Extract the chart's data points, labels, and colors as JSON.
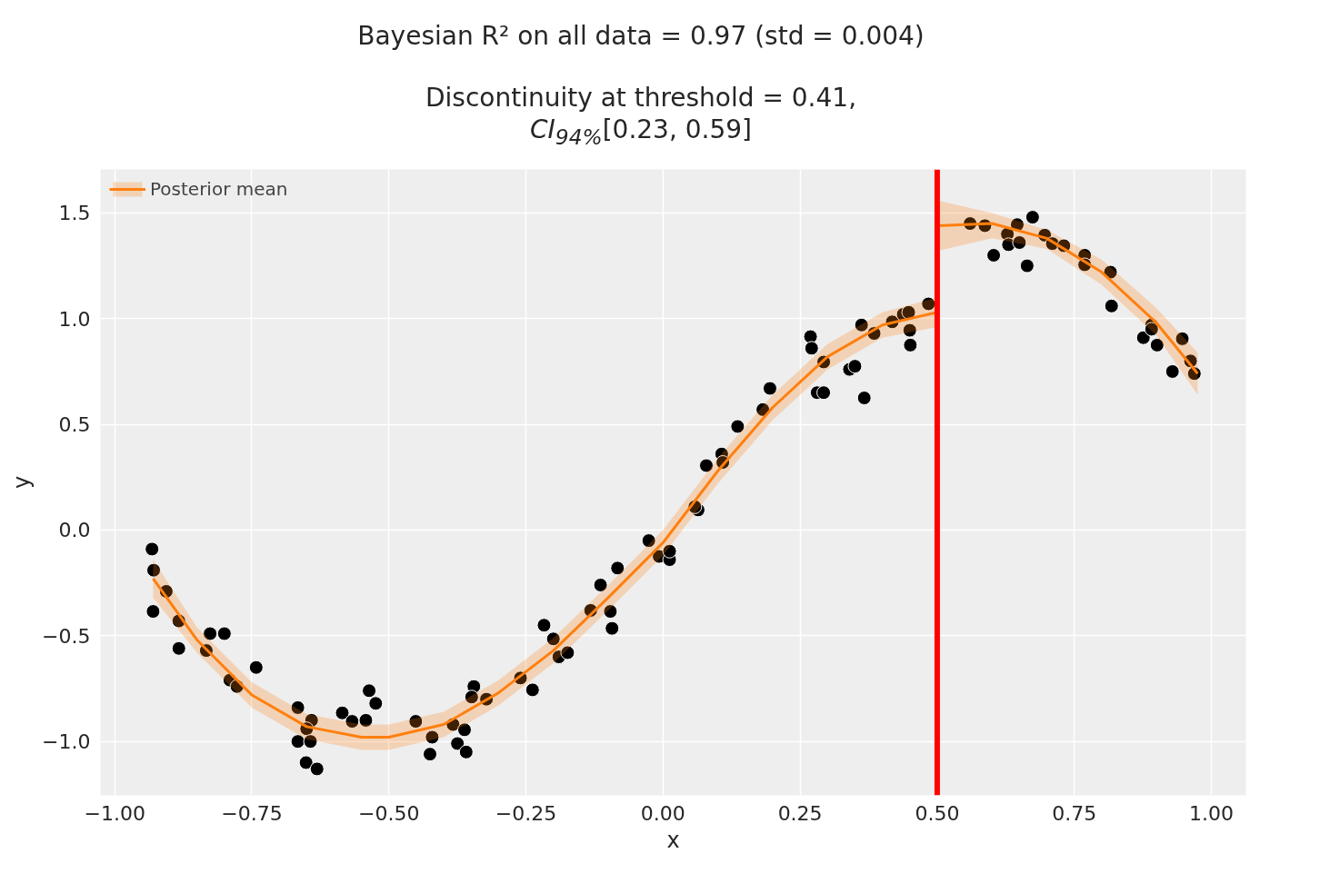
{
  "chart_data": {
    "type": "scatter",
    "title": "Bayesian R² on all data = 0.97 (std = 0.004)",
    "subtitle": "Discontinuity at threshold = 0.41,\nCI$_{94%}$[0.23, 0.59]",
    "xlabel": "x",
    "ylabel": "y",
    "xlim": [
      -1.026,
      1.063
    ],
    "ylim": [
      -1.255,
      1.706
    ],
    "xticks": [
      {
        "value": -1.0,
        "label": "−1.00"
      },
      {
        "value": -0.75,
        "label": "−0.75"
      },
      {
        "value": -0.5,
        "label": "−0.50"
      },
      {
        "value": -0.25,
        "label": "−0.25"
      },
      {
        "value": 0,
        "label": "0.00"
      },
      {
        "value": 0.25,
        "label": "0.25"
      },
      {
        "value": 0.5,
        "label": "0.50"
      },
      {
        "value": 0.75,
        "label": "0.75"
      },
      {
        "value": 1.0,
        "label": "1.00"
      }
    ],
    "yticks": [
      {
        "value": -1.0,
        "label": "−1.0"
      },
      {
        "value": -0.5,
        "label": "−0.5"
      },
      {
        "value": 0,
        "label": "0.0"
      },
      {
        "value": 0.5,
        "label": "0.5"
      },
      {
        "value": 1.0,
        "label": "1.0"
      },
      {
        "value": 1.5,
        "label": "1.5"
      }
    ],
    "grid": true,
    "legend": "top left",
    "ref_lines": [
      {
        "axis": "x",
        "value": 0.5,
        "color": "#ff0000"
      }
    ],
    "series": [
      {
        "marker": "circle",
        "color": "#000000",
        "x": [
          -0.932,
          -0.929,
          -0.906,
          -0.93,
          -0.883,
          -0.883,
          -0.826,
          -0.8,
          -0.833,
          -0.742,
          -0.79,
          -0.777,
          -0.666,
          -0.641,
          -0.65,
          -0.666,
          -0.643,
          -0.651,
          -0.631,
          -0.585,
          -0.567,
          -0.542,
          -0.536,
          -0.524,
          -0.451,
          -0.421,
          -0.425,
          -0.383,
          -0.362,
          -0.375,
          -0.359,
          -0.345,
          -0.349,
          -0.322,
          -0.26,
          -0.238,
          -0.217,
          -0.2,
          -0.19,
          -0.174,
          -0.132,
          -0.114,
          -0.096,
          -0.093,
          -0.083,
          -0.026,
          -0.007,
          0.012,
          0.012,
          0.064,
          0.058,
          0.079,
          0.107,
          0.109,
          0.136,
          0.182,
          0.195,
          0.269,
          0.271,
          0.293,
          0.281,
          0.293,
          0.34,
          0.35,
          0.362,
          0.367,
          0.385,
          0.418,
          0.438,
          0.448,
          0.45,
          0.451,
          0.484,
          0.56,
          0.587,
          0.603,
          0.628,
          0.63,
          0.646,
          0.65,
          0.664,
          0.674,
          0.696,
          0.71,
          0.731,
          0.769,
          0.769,
          0.816,
          0.818,
          0.876,
          0.891,
          0.891,
          0.901,
          0.947,
          0.962,
          0.929,
          0.969
        ],
        "values": [
          -0.09,
          -0.19,
          -0.29,
          -0.385,
          -0.43,
          -0.56,
          -0.49,
          -0.49,
          -0.57,
          -0.65,
          -0.71,
          -0.74,
          -0.84,
          -0.9,
          -0.94,
          -1.0,
          -1.0,
          -1.1,
          -1.13,
          -0.865,
          -0.905,
          -0.9,
          -0.76,
          -0.82,
          -0.905,
          -0.98,
          -1.06,
          -0.92,
          -0.945,
          -1.01,
          -1.05,
          -0.74,
          -0.79,
          -0.8,
          -0.7,
          -0.756,
          -0.45,
          -0.515,
          -0.6,
          -0.58,
          -0.38,
          -0.26,
          -0.385,
          -0.465,
          -0.18,
          -0.05,
          -0.125,
          -0.14,
          -0.1,
          0.095,
          0.11,
          0.305,
          0.36,
          0.32,
          0.49,
          0.57,
          0.67,
          0.915,
          0.86,
          0.795,
          0.65,
          0.65,
          0.76,
          0.775,
          0.97,
          0.625,
          0.93,
          0.985,
          1.02,
          1.03,
          0.945,
          0.875,
          1.07,
          1.45,
          1.44,
          1.3,
          1.4,
          1.35,
          1.445,
          1.36,
          1.25,
          1.48,
          1.395,
          1.355,
          1.345,
          1.3,
          1.255,
          1.22,
          1.06,
          0.91,
          0.97,
          0.95,
          0.875,
          0.905,
          0.8,
          0.75,
          0.74
        ]
      },
      {
        "type": "line",
        "name": "Posterior mean",
        "color": "#ff7f0e",
        "x": [
          -0.93,
          -0.85,
          -0.75,
          -0.65,
          -0.55,
          -0.5,
          -0.4,
          -0.3,
          -0.2,
          -0.1,
          0,
          0.1,
          0.2,
          0.3,
          0.4,
          0.5
        ],
        "values": [
          -0.23,
          -0.52,
          -0.78,
          -0.93,
          -0.98,
          -0.98,
          -0.92,
          -0.77,
          -0.57,
          -0.32,
          -0.06,
          0.28,
          0.58,
          0.82,
          0.97,
          1.03
        ],
        "lower": [
          -0.32,
          -0.58,
          -0.84,
          -0.99,
          -1.04,
          -1.04,
          -0.98,
          -0.83,
          -0.63,
          -0.38,
          -0.12,
          0.22,
          0.52,
          0.76,
          0.91,
          0.96
        ],
        "upper": [
          -0.14,
          -0.46,
          -0.72,
          -0.87,
          -0.92,
          -0.92,
          -0.86,
          -0.71,
          -0.51,
          -0.26,
          0.0,
          0.34,
          0.64,
          0.88,
          1.03,
          1.1
        ]
      },
      {
        "type": "line",
        "color": "#ff7f0e",
        "x": [
          0.5,
          0.6,
          0.7,
          0.8,
          0.9,
          0.975
        ],
        "values": [
          1.44,
          1.45,
          1.38,
          1.22,
          0.98,
          0.74
        ],
        "lower": [
          1.32,
          1.38,
          1.33,
          1.16,
          0.92,
          0.64
        ],
        "upper": [
          1.56,
          1.5,
          1.42,
          1.28,
          1.05,
          0.84
        ]
      }
    ]
  }
}
